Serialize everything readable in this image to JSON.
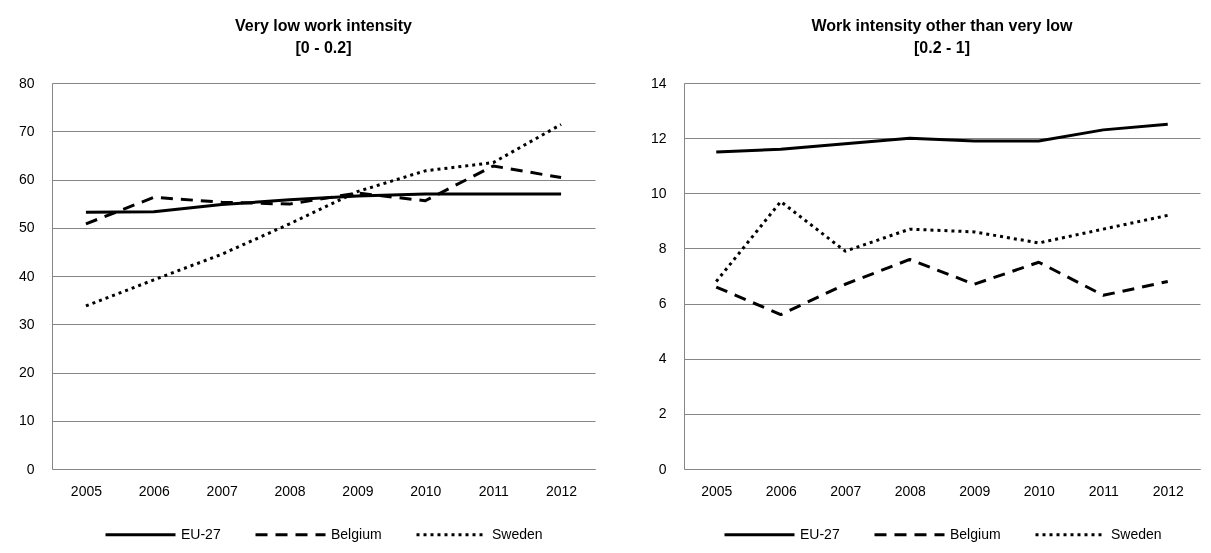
{
  "chart_data": [
    {
      "type": "line",
      "title": "Very low work intensity\n[0 - 0.2]",
      "categories": [
        "2005",
        "2006",
        "2007",
        "2008",
        "2009",
        "2010",
        "2011",
        "2012"
      ],
      "series": [
        {
          "name": "EU-27",
          "color": "#000000",
          "line_style": "solid",
          "values": [
            53.2,
            53.3,
            54.8,
            55.8,
            56.6,
            57.0,
            57.0,
            57.0
          ]
        },
        {
          "name": "Belgium",
          "color": "#000000",
          "line_style": "dashed",
          "values": [
            50.8,
            56.3,
            55.3,
            54.9,
            57.2,
            55.6,
            62.8,
            60.4
          ]
        },
        {
          "name": "Sweden",
          "color": "#000000",
          "line_style": "dotted",
          "values": [
            33.8,
            39.2,
            44.5,
            50.8,
            57.5,
            61.8,
            63.5,
            71.4
          ]
        }
      ],
      "ylim": [
        0,
        80
      ],
      "yticks": [
        0,
        10,
        20,
        30,
        40,
        50,
        60,
        70,
        80
      ],
      "grid": "y",
      "legend": "bottom"
    },
    {
      "type": "line",
      "title": "Work intensity other than very low\n[0.2 - 1]",
      "categories": [
        "2005",
        "2006",
        "2007",
        "2008",
        "2009",
        "2010",
        "2011",
        "2012"
      ],
      "series": [
        {
          "name": "EU-27",
          "color": "#000000",
          "line_style": "solid",
          "values": [
            11.5,
            11.6,
            11.8,
            12.0,
            11.9,
            11.9,
            12.3,
            12.5
          ]
        },
        {
          "name": "Belgium",
          "color": "#000000",
          "line_style": "dashed",
          "values": [
            6.6,
            5.6,
            6.7,
            7.6,
            6.7,
            7.5,
            6.3,
            6.8
          ]
        },
        {
          "name": "Sweden",
          "color": "#000000",
          "line_style": "dotted",
          "values": [
            6.8,
            9.7,
            7.9,
            8.7,
            8.6,
            8.2,
            8.7,
            9.2
          ]
        }
      ],
      "ylim": [
        0,
        14
      ],
      "yticks": [
        0,
        2,
        4,
        6,
        8,
        10,
        12,
        14
      ],
      "grid": "y",
      "legend": "bottom"
    }
  ]
}
